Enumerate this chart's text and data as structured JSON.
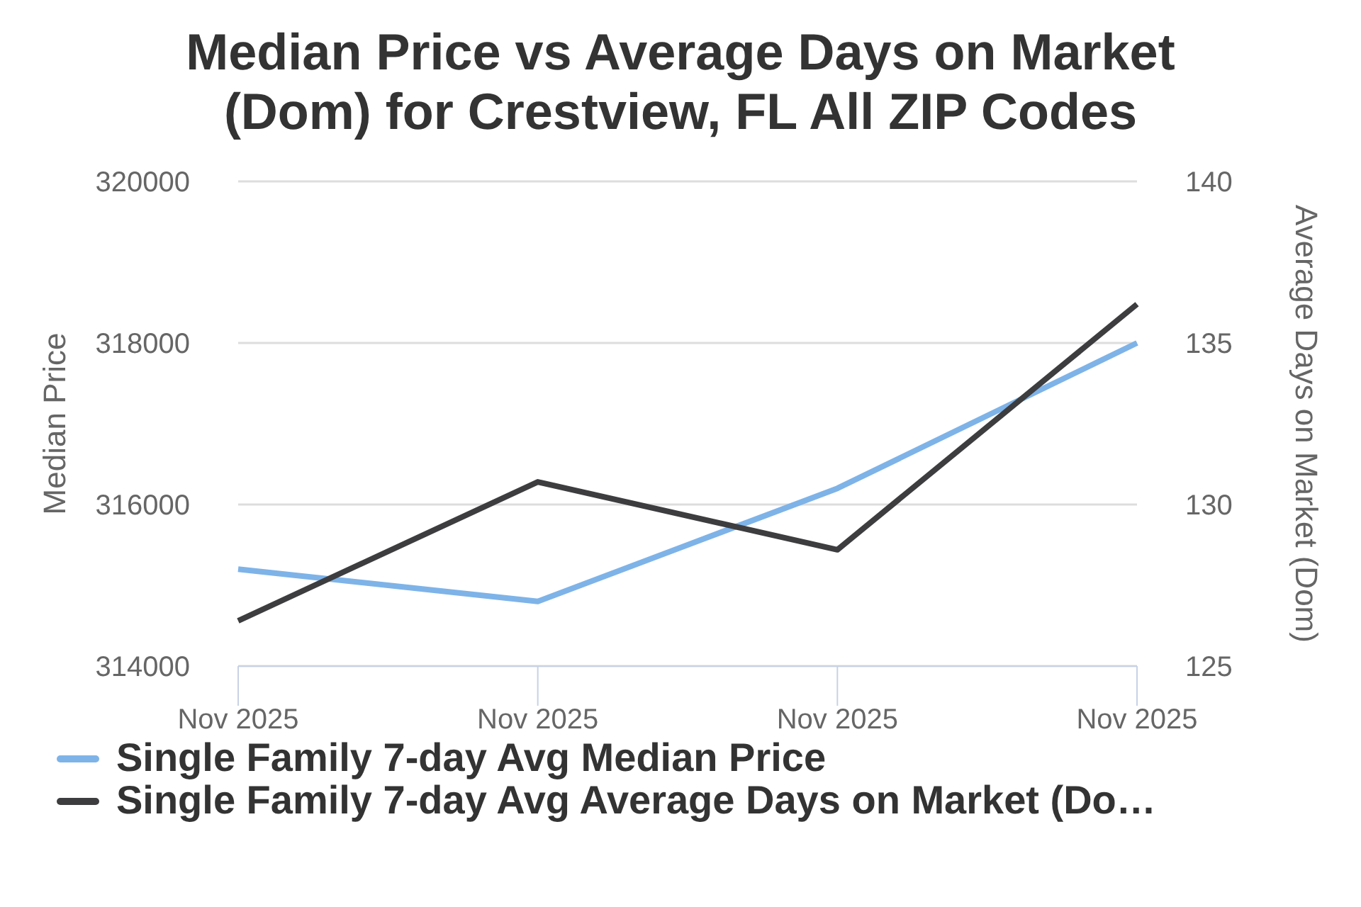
{
  "chart_data": {
    "type": "line",
    "title": "Median Price vs Average Days on Market (Dom) for Crestview, FL All ZIP Codes",
    "categories": [
      "Nov 2025",
      "Nov 2025",
      "Nov 2025",
      "Nov 2025"
    ],
    "ylabel": "Median Price",
    "y2label": "Average Days on Market (Dom)",
    "series": [
      {
        "name": "Single Family 7-day Avg Median Price",
        "color": "#7eb3e8",
        "values": [
          315200,
          314800,
          316200,
          318000
        ]
      },
      {
        "name": "Single Family 7-day Avg Average Days on Market (Do…",
        "color": "#3d3d40",
        "axis": "y2",
        "values": [
          126.4,
          130.7,
          128.6,
          136.2
        ]
      }
    ],
    "ylim": [
      314000,
      320000
    ],
    "yticks": [
      314000,
      316000,
      318000,
      320000
    ],
    "y2lim": [
      125,
      140
    ],
    "y2ticks": [
      125,
      130,
      135,
      140
    ],
    "grid": "y",
    "legend": "bottom",
    "marker": "none",
    "line_style": "solid"
  }
}
